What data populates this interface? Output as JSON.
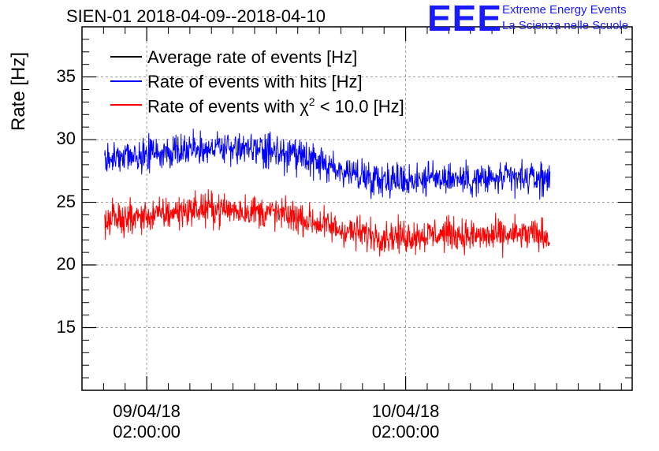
{
  "title": "SIEN-01 2018-04-09--2018-04-10",
  "logo": {
    "mark": "EEE",
    "line1": "Extreme Energy Events",
    "line2": "La Scienza nelle Scuole"
  },
  "colors": {
    "average": "#000000",
    "hits": "#0000ff",
    "chi2": "#ff0000",
    "grid": "#9a9a9a"
  },
  "chart_data": {
    "type": "line",
    "title": "SIEN-01 2018-04-09--2018-04-10",
    "ylabel": "Rate [Hz]",
    "xlabel": "",
    "ylim": [
      10,
      39
    ],
    "xlim_hours": [
      -6,
      45
    ],
    "grid": true,
    "legend_position": "top-left",
    "yticks": [
      15,
      20,
      25,
      30,
      35
    ],
    "ytick_labels": [
      "15",
      "20",
      "25",
      "30",
      "35"
    ],
    "xticks": [
      {
        "hour": 0,
        "date": "09/04/18",
        "time": "02:00:00"
      },
      {
        "hour": 24,
        "date": "10/04/18",
        "time": "02:00:00"
      }
    ],
    "legend": [
      {
        "label": "Average rate of events [Hz]",
        "color": "#000000"
      },
      {
        "label": "Rate of events with hits [Hz]",
        "color": "#0000ff"
      },
      {
        "label_prefix": "Rate of events with ",
        "label_symbol": "χ",
        "label_sup": "2",
        "label_suffix": " < 10.0 [Hz]",
        "color": "#ff0000"
      }
    ],
    "series": [
      {
        "name": "Rate of events with hits [Hz]",
        "color": "#0000ff",
        "x_hours": [
          -3.9,
          -2,
          0,
          2,
          4,
          6,
          8,
          10,
          12,
          14,
          16,
          18,
          20,
          22,
          24,
          26,
          28,
          30,
          32,
          34,
          36,
          37.4
        ],
        "y": [
          28.5,
          28.6,
          28.8,
          29.0,
          29.3,
          29.4,
          29.3,
          29.2,
          29.0,
          28.6,
          28.1,
          27.5,
          27.1,
          26.9,
          26.8,
          26.9,
          27.0,
          26.8,
          26.8,
          26.9,
          26.9,
          26.9
        ],
        "noise_amplitude": 1.0
      },
      {
        "name": "Rate of events with χ2 < 10.0 [Hz]",
        "color": "#ff0000",
        "x_hours": [
          -3.9,
          -2,
          0,
          2,
          4,
          6,
          8,
          10,
          12,
          14,
          16,
          18,
          20,
          22,
          24,
          26,
          28,
          30,
          32,
          34,
          36,
          37.4
        ],
        "y": [
          23.6,
          23.7,
          23.9,
          24.1,
          24.4,
          24.5,
          24.4,
          24.3,
          24.1,
          23.8,
          23.3,
          22.8,
          22.5,
          22.3,
          22.3,
          22.4,
          22.5,
          22.3,
          22.3,
          22.4,
          22.4,
          22.3
        ],
        "noise_amplitude": 1.0
      }
    ]
  }
}
